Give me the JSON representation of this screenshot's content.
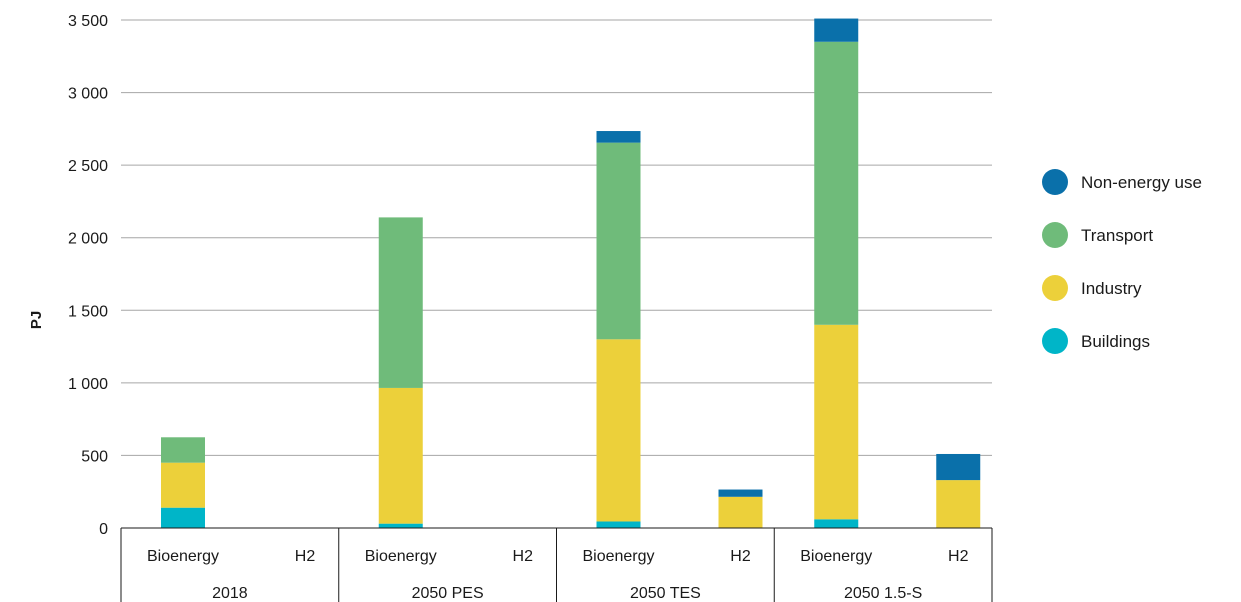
{
  "chart_data": {
    "type": "bar",
    "stacked": true,
    "ylabel": "PJ",
    "ylim": [
      0,
      3500
    ],
    "yticks": [
      {
        "value": 0,
        "label": "0"
      },
      {
        "value": 500,
        "label": "500"
      },
      {
        "value": 1000,
        "label": "1 000"
      },
      {
        "value": 1500,
        "label": "1 500"
      },
      {
        "value": 2000,
        "label": "2 000"
      },
      {
        "value": 2500,
        "label": "2 500"
      },
      {
        "value": 3000,
        "label": "3 000"
      },
      {
        "value": 3500,
        "label": "3 500"
      }
    ],
    "grid": true,
    "legend_position": "right",
    "groups": [
      "2018",
      "2050 PES",
      "2050 TES",
      "2050 1.5-S"
    ],
    "categories": [
      "Bioenergy",
      "H2"
    ],
    "series": [
      {
        "name": "Buildings",
        "color": "#00b5c8",
        "values": [
          [
            140,
            0
          ],
          [
            30,
            0
          ],
          [
            45,
            0
          ],
          [
            60,
            0
          ]
        ]
      },
      {
        "name": "Industry",
        "color": "#ecd03a",
        "values": [
          [
            310,
            0
          ],
          [
            935,
            0
          ],
          [
            1255,
            215
          ],
          [
            1340,
            330
          ]
        ]
      },
      {
        "name": "Transport",
        "color": "#6fbb7a",
        "values": [
          [
            175,
            0
          ],
          [
            1175,
            0
          ],
          [
            1355,
            0
          ],
          [
            1950,
            0
          ]
        ]
      },
      {
        "name": "Non-energy use",
        "color": "#0a70aa",
        "values": [
          [
            0,
            0
          ],
          [
            0,
            0
          ],
          [
            80,
            50
          ],
          [
            160,
            180
          ]
        ]
      }
    ]
  }
}
